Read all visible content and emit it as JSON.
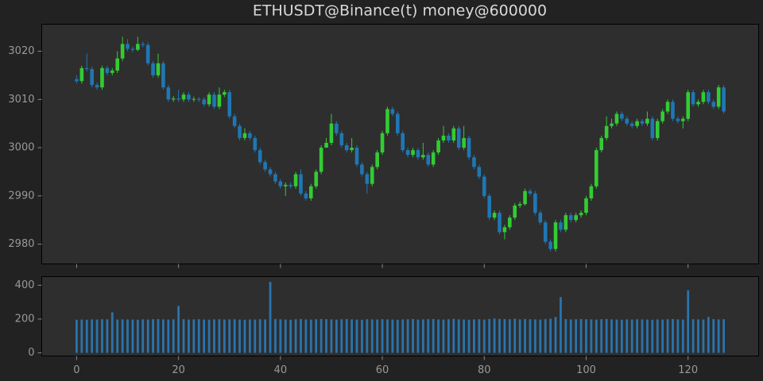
{
  "chart_data": [
    {
      "type": "candlestick",
      "title": "ETHUSDT@Binance(t) money@600000",
      "up_color": "#33cc33",
      "down_color": "#1f77b4",
      "x": [
        0,
        1,
        2,
        3,
        4,
        5,
        6,
        7,
        8,
        9,
        10,
        11,
        12,
        13,
        14,
        15,
        16,
        17,
        18,
        19,
        20,
        21,
        22,
        23,
        24,
        25,
        26,
        27,
        28,
        29,
        30,
        31,
        32,
        33,
        34,
        35,
        36,
        37,
        38,
        39,
        40,
        41,
        42,
        43,
        44,
        45,
        46,
        47,
        48,
        49,
        50,
        51,
        52,
        53,
        54,
        55,
        56,
        57,
        58,
        59,
        60,
        61,
        62,
        63,
        64,
        65,
        66,
        67,
        68,
        69,
        70,
        71,
        72,
        73,
        74,
        75,
        76,
        77,
        78,
        79,
        80,
        81,
        82,
        83,
        84,
        85,
        86,
        87,
        88,
        89,
        90,
        91,
        92,
        93,
        94,
        95,
        96,
        97,
        98,
        99,
        100,
        101,
        102,
        103,
        104,
        105,
        106,
        107,
        108,
        109,
        110,
        111,
        112,
        113,
        114,
        115,
        116,
        117,
        118,
        119,
        120,
        121,
        122,
        123,
        124,
        125,
        126,
        127
      ],
      "open": [
        3014.2,
        3013.8,
        3016.5,
        3016.3,
        3013,
        3012.5,
        3016.5,
        3015.5,
        3016,
        3018.5,
        3021.5,
        3020.5,
        3020.3,
        3021.5,
        3021.3,
        3017.5,
        3015,
        3017.5,
        3012.5,
        3010,
        3010.2,
        3010,
        3011,
        3010,
        3010.1,
        3010,
        3009,
        3011,
        3008.5,
        3011,
        3011.5,
        3006.5,
        3004.5,
        3002,
        3003,
        3002,
        2999.5,
        2997,
        2995.5,
        2994.5,
        2993,
        2992,
        2992.3,
        2992,
        2994.5,
        2990.5,
        2989.5,
        2992,
        2995,
        3000,
        3001,
        3005,
        3003,
        3000.5,
        2999.5,
        3000,
        2996.5,
        2994.5,
        2992.5,
        2996,
        2999,
        3003,
        3008,
        3007,
        3003,
        2999.5,
        2998.5,
        2999.5,
        2998,
        2998.5,
        2996.5,
        2999,
        3001.5,
        3002.5,
        3001.5,
        3004,
        3000,
        3002,
        2998,
        2996,
        2994,
        2990,
        2985.5,
        2986.5,
        2982.5,
        2983.5,
        2985.5,
        2988,
        2988.3,
        2991,
        2990.5,
        2986.5,
        2984.5,
        2980.5,
        2979,
        2984.5,
        2983,
        2986,
        2985,
        2986,
        2986.5,
        2989.5,
        2992,
        2999.5,
        3002,
        3004.5,
        3005,
        3007,
        3006,
        3005,
        3004.5,
        3005.5,
        3005,
        3006,
        3002,
        3005.5,
        3007.5,
        3009.5,
        3006,
        3005.5,
        3006,
        3011.5,
        3009,
        3009.5,
        3011.5,
        3009.5,
        3008.5,
        3012.5
      ],
      "high": [
        3015,
        3017,
        3019.5,
        3016.8,
        3013.5,
        3017,
        3017,
        3016.5,
        3020,
        3023,
        3022.5,
        3021,
        3023,
        3022,
        3021.8,
        3018,
        3019.5,
        3018,
        3013,
        3010.7,
        3012,
        3011.5,
        3011.5,
        3010.6,
        3010.5,
        3010.5,
        3011.5,
        3011.5,
        3012.5,
        3012,
        3012,
        3007,
        3005,
        3004,
        3003.5,
        3002.5,
        3000,
        2997.5,
        2996,
        2995,
        2993.5,
        2992.8,
        2992.8,
        2995,
        2995.5,
        2991,
        2992.5,
        2995.5,
        3000.5,
        3002,
        3007,
        3005.5,
        3003.5,
        3001,
        3002,
        3000.5,
        2997,
        2995,
        2996.5,
        2999.5,
        3003.5,
        3008.5,
        3008.5,
        3007.5,
        3003.5,
        3000,
        3000,
        3000,
        3001,
        2999,
        2999.5,
        3002,
        3004.5,
        3003,
        3004.5,
        3004.5,
        3004.5,
        3002.5,
        2998.5,
        2996.5,
        2994.5,
        2990.5,
        2987,
        2987,
        2984,
        2986,
        2988.5,
        2988.8,
        2991.5,
        2991.5,
        2991,
        2987,
        2985,
        2981,
        2985,
        2985,
        2986.5,
        2986.5,
        2986.5,
        2987,
        2990,
        2992.5,
        3000,
        3002.5,
        3006.5,
        3006,
        3007.5,
        3007.5,
        3006.5,
        3005.5,
        3006,
        3006,
        3007.5,
        3006.5,
        3006,
        3008,
        3010,
        3010,
        3006.5,
        3006.5,
        3012,
        3012,
        3010,
        3012,
        3012,
        3010,
        3013,
        3013
      ],
      "low": [
        3013.3,
        3013.3,
        3015.8,
        3012.5,
        3012,
        3012,
        3015,
        3015,
        3015.5,
        3018,
        3020,
        3019.8,
        3020,
        3020.8,
        3017,
        3014.5,
        3014.5,
        3012,
        3009.5,
        3009.5,
        3009.5,
        3009.5,
        3009.5,
        3009.5,
        3009.5,
        3008.5,
        3008.5,
        3008,
        3008,
        3010.5,
        3006,
        3004,
        3001.5,
        3001.5,
        3001.5,
        2999,
        2996.5,
        2995,
        2994,
        2992.5,
        2991.5,
        2990,
        2991.5,
        2991.5,
        2990,
        2989,
        2989,
        2991.5,
        2994.5,
        3000,
        3000.5,
        3002.5,
        3000,
        2999,
        2999,
        2996,
        2994,
        2990.5,
        2992,
        2995.5,
        2998.5,
        3002.5,
        3006.5,
        3002.5,
        2999,
        2998,
        2998,
        2997.5,
        2997.5,
        2996,
        2996,
        2998.5,
        3001,
        3001,
        3001,
        2999.5,
        2999.5,
        2997.5,
        2995.5,
        2993.5,
        2989.5,
        2985,
        2985,
        2982,
        2981,
        2983,
        2985,
        2987.5,
        2988,
        2990,
        2986,
        2984,
        2980,
        2978.5,
        2978.5,
        2982.5,
        2982.5,
        2984.5,
        2984.5,
        2985.5,
        2986,
        2989,
        2991.5,
        2999,
        3001.5,
        3004,
        3004.5,
        3005.5,
        3004.5,
        3004,
        3004,
        3004.5,
        3004.5,
        3001.5,
        3001.5,
        3005,
        3007,
        3005.5,
        3005,
        3004,
        3005.5,
        3008.5,
        3008.5,
        3009,
        3009,
        3008,
        3008,
        3007
      ],
      "close": [
        3013.8,
        3016.5,
        3016.3,
        3013,
        3012.5,
        3016.5,
        3015.5,
        3016,
        3018.5,
        3021.5,
        3020.5,
        3020.3,
        3021.5,
        3021.3,
        3017.5,
        3015,
        3017.5,
        3012.5,
        3010,
        3010.2,
        3010,
        3011,
        3010,
        3010.1,
        3010,
        3009,
        3011,
        3008.5,
        3011,
        3011.5,
        3006.5,
        3004.5,
        3002,
        3003,
        3002,
        2999.5,
        2997,
        2995.5,
        2994.5,
        2993,
        2992,
        2992.3,
        2992,
        2994.5,
        2990.5,
        2989.5,
        2992,
        2995,
        3000,
        3001,
        3005,
        3003,
        3000.5,
        2999.5,
        3000,
        2996.5,
        2994.5,
        2992.5,
        2996,
        2999,
        3003,
        3008,
        3007,
        3003,
        2999.5,
        2998.5,
        2999.5,
        2998,
        2998.5,
        2996.5,
        2999,
        3001.5,
        3002.5,
        3001.5,
        3004,
        3000,
        3002,
        2998,
        2996,
        2994,
        2990,
        2985.5,
        2986.5,
        2982.5,
        2983.5,
        2985.5,
        2988,
        2988.3,
        2991,
        2990.5,
        2986.5,
        2984.5,
        2980.5,
        2979,
        2984.5,
        2983,
        2986,
        2985,
        2986,
        2986.5,
        2989.5,
        2992,
        2999.5,
        3002,
        3004.5,
        3005,
        3007,
        3006,
        3005,
        3004.5,
        3005.5,
        3005,
        3006,
        3002,
        3005.5,
        3007.5,
        3009.5,
        3006,
        3005.5,
        3006,
        3011.5,
        3009,
        3009.5,
        3011.5,
        3009.5,
        3008.5,
        3012.5,
        3007.5
      ],
      "xlim": [
        -6.85,
        133.85
      ],
      "ylim": [
        2975.9,
        3025.6
      ],
      "yticks": [
        2980,
        2990,
        3000,
        3010,
        3020
      ]
    },
    {
      "type": "bar",
      "color": "#2a74ad",
      "values": [
        196,
        197,
        196,
        198,
        197,
        199,
        198,
        240,
        197,
        198,
        198,
        197,
        196,
        198,
        197,
        199,
        200,
        198,
        197,
        199,
        278,
        199,
        197,
        198,
        199,
        197,
        196,
        198,
        199,
        197,
        198,
        199,
        197,
        196,
        198,
        197,
        199,
        198,
        420,
        200,
        198,
        197,
        196,
        199,
        200,
        198,
        197,
        199,
        200,
        199,
        198,
        197,
        199,
        200,
        198,
        197,
        196,
        199,
        198,
        197,
        199,
        198,
        197,
        196,
        198,
        199,
        200,
        197,
        198,
        199,
        200,
        198,
        197,
        199,
        201,
        198,
        197,
        196,
        198,
        199,
        197,
        200,
        203,
        201,
        200,
        199,
        202,
        198,
        200,
        199,
        198,
        197,
        200,
        202,
        212,
        330,
        200,
        198,
        199,
        200,
        199,
        198,
        197,
        199,
        200,
        198,
        197,
        196,
        198,
        197,
        199,
        198,
        197,
        196,
        198,
        197,
        199,
        200,
        198,
        197,
        370,
        199,
        198,
        197,
        212,
        200,
        198,
        199
      ],
      "xlim": [
        -6.85,
        133.85
      ],
      "ylim": [
        -18.6,
        451
      ],
      "yticks": [
        0,
        200,
        400
      ],
      "xticks": [
        0,
        20,
        40,
        60,
        80,
        100,
        120
      ]
    }
  ]
}
